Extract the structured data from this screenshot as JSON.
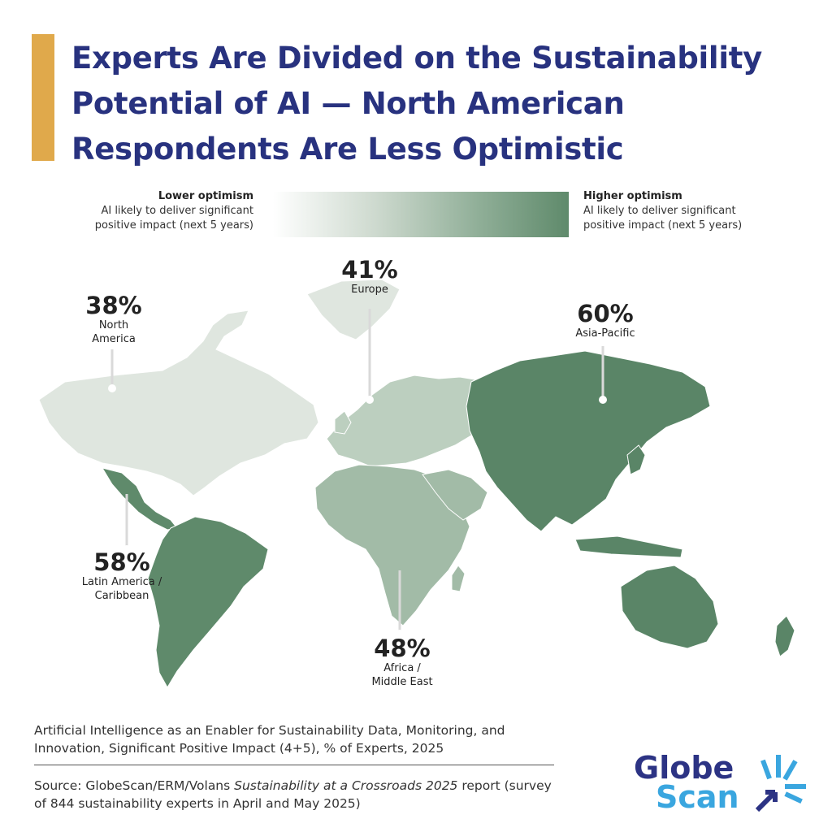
{
  "title": "Experts Are Divided on the Sustainability Potential of AI — North American Respondents Are Less Optimistic",
  "legend": {
    "low_label": "Lower optimism",
    "low_sub": "AI likely to deliver significant positive impact (next 5 years)",
    "high_label": "Higher optimism",
    "high_sub": "AI likely to deliver significant positive impact (next 5 years)"
  },
  "chart_data": {
    "type": "choropleth",
    "color_scale": {
      "low": "#ffffff",
      "high": "#5f8a6b"
    },
    "regions": [
      {
        "name": "North America",
        "value": 38,
        "label": "38%",
        "color": "#dfe6df"
      },
      {
        "name": "Europe",
        "value": 41,
        "label": "41%",
        "color": "#bccfbf"
      },
      {
        "name": "Africa / Middle East",
        "value": 48,
        "label": "48%",
        "color": "#a2bba7"
      },
      {
        "name": "Latin America / Caribbean",
        "value": 58,
        "label": "58%",
        "color": "#5f8a6b"
      },
      {
        "name": "Asia-Pacific",
        "value": 60,
        "label": "60%",
        "color": "#5a8567"
      }
    ]
  },
  "labels": {
    "north_america": {
      "pct": "38%",
      "name": "North America"
    },
    "europe": {
      "pct": "41%",
      "name": "Europe"
    },
    "asia_pacific": {
      "pct": "60%",
      "name": "Asia-Pacific"
    },
    "latin_america": {
      "pct": "58%",
      "name": "Latin America / Caribbean"
    },
    "africa_me": {
      "pct": "48%",
      "name": "Africa / Middle East"
    }
  },
  "caption": "Artificial Intelligence as an Enabler for Sustainability Data, Monitoring, and Innovation, Significant Positive Impact (4+5), % of Experts, 2025",
  "source": {
    "prefix": "Source: GlobeScan/ERM/Volans ",
    "report": "Sustainability at a Crossroads 2025",
    "suffix": " report (survey of 844 sustainability experts in April and May 2025)"
  },
  "logo": {
    "word1": "Globe",
    "word2": "Scan",
    "color1": "#2c3384",
    "color2": "#3aa6df"
  }
}
